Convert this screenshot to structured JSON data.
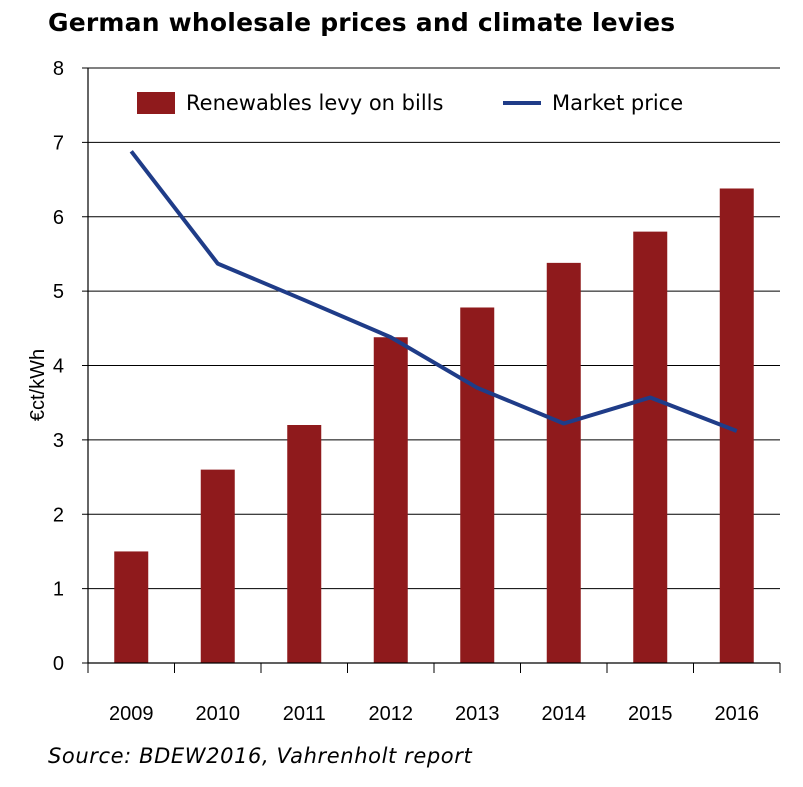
{
  "chart_data": {
    "type": "bar",
    "title": "German wholesale prices and climate levies",
    "xlabel": "",
    "ylabel": "€ct/kWh",
    "categories": [
      "2009",
      "2010",
      "2011",
      "2012",
      "2013",
      "2014",
      "2015",
      "2016"
    ],
    "ylim": [
      0,
      8
    ],
    "yticks": [
      0,
      1,
      2,
      3,
      4,
      5,
      6,
      7,
      8
    ],
    "grid": true,
    "legend_position": "top",
    "series": [
      {
        "name": "Renewables levy on bills",
        "type": "bar",
        "color": "#8f1a1c",
        "values": [
          1.5,
          2.6,
          3.2,
          4.38,
          4.78,
          5.38,
          5.8,
          6.38
        ]
      },
      {
        "name": "Market price",
        "type": "line",
        "color": "#1f3c88",
        "values": [
          6.88,
          5.37,
          4.88,
          4.38,
          3.7,
          3.22,
          3.57,
          3.12
        ]
      }
    ]
  },
  "source": "Source: BDEW2016, Vahrenholt report"
}
